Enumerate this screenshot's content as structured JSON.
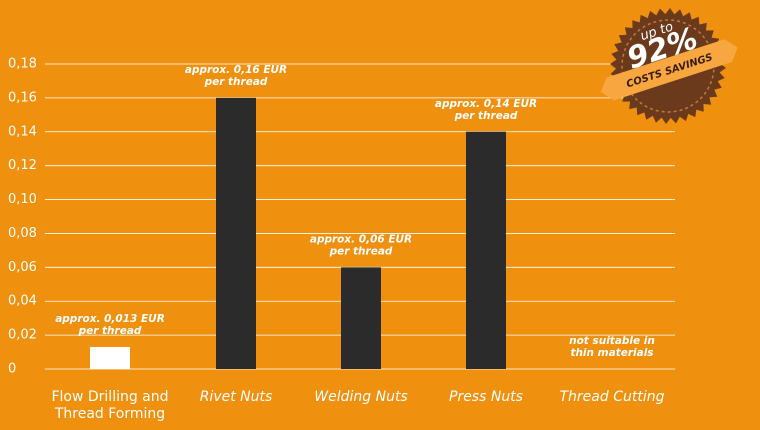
{
  "chart_data": {
    "type": "bar",
    "categories": [
      "Flow Drilling and Thread Forming",
      "Rivet Nuts",
      "Welding Nuts",
      "Press Nuts",
      "Thread Cutting"
    ],
    "values": [
      0.013,
      0.16,
      0.06,
      0.14,
      null
    ],
    "value_labels": [
      [
        "approx. 0,013 EUR",
        "per thread"
      ],
      [
        "approx. 0,16 EUR",
        "per thread"
      ],
      [
        "approx. 0,06 EUR",
        "per thread"
      ],
      [
        "approx. 0,14 EUR",
        "per thread"
      ],
      [
        "not suitable in",
        "thin materials"
      ]
    ],
    "colors": [
      "#ffffff",
      "#2b2b2b",
      "#2b2b2b",
      "#2b2b2b",
      "#2b2b2b"
    ],
    "ylim": [
      0,
      0.18
    ],
    "yticks": [
      0,
      {
        "value": 0.02,
        "label": "0,02"
      },
      {
        "value": 0.04,
        "label": "0,04"
      },
      {
        "value": 0.06,
        "label": "0,06"
      },
      {
        "value": 0.08,
        "label": "0,08"
      },
      {
        "value": 0.1,
        "label": "0,10"
      },
      {
        "value": 0.12,
        "label": "0,12"
      },
      {
        "value": 0.14,
        "label": "0,14"
      },
      {
        "value": 0.16,
        "label": "0,16"
      },
      {
        "value": 0.18,
        "label": "0,18"
      }
    ],
    "grid": true,
    "annotations": [
      "up to",
      "92%",
      "COSTS SAVINGS"
    ]
  }
}
